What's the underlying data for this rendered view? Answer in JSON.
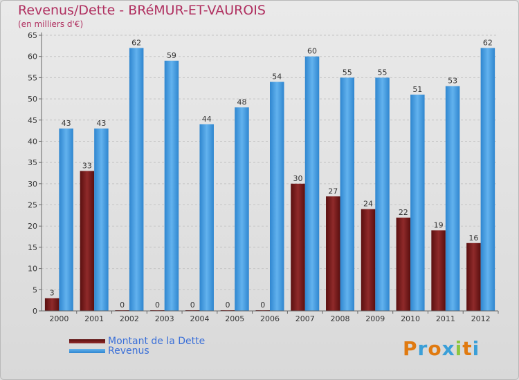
{
  "chart_data": {
    "type": "bar",
    "title": "Revenus/Dette - BRéMUR-ET-VAUROIS",
    "subtitle": "(en milliers d'€)",
    "categories": [
      "2000",
      "2001",
      "2002",
      "2003",
      "2004",
      "2005",
      "2006",
      "2007",
      "2008",
      "2009",
      "2010",
      "2011",
      "2012"
    ],
    "series": [
      {
        "name": "Montant de la Dette",
        "color": "#7a1a1a",
        "values": [
          3,
          33,
          0,
          0,
          0,
          0,
          0,
          30,
          27,
          24,
          22,
          19,
          16
        ]
      },
      {
        "name": "Revenus",
        "color": "#4a9fe0",
        "values": [
          43,
          43,
          62,
          59,
          44,
          48,
          54,
          60,
          55,
          55,
          51,
          53,
          62
        ]
      }
    ],
    "yticks": [
      0,
      5,
      10,
      15,
      20,
      25,
      30,
      35,
      40,
      45,
      50,
      55,
      60,
      65
    ],
    "ylim": [
      0,
      65
    ],
    "grid": true,
    "legend_position": "bottom-left"
  },
  "logo": {
    "letters": [
      "P",
      "r",
      "o",
      "x",
      "i",
      "t",
      "i"
    ],
    "colors": [
      "#e07a10",
      "#3a9fd8",
      "#e07a10",
      "#3a9fd8",
      "#8cc63f",
      "#e07a10",
      "#3a9fd8"
    ]
  }
}
